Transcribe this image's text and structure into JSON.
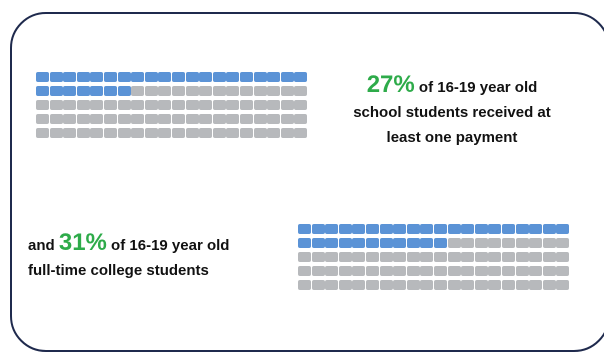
{
  "colors": {
    "filled": "#5b93d6",
    "empty": "#b7b9bc",
    "highlight": "#2eab4a",
    "border": "#1f2a4d"
  },
  "chart_data": [
    {
      "type": "waffle",
      "title": "",
      "value_percent": 27,
      "grid": {
        "rows": 5,
        "cols": 20
      },
      "filled_cells": 27,
      "caption": {
        "pct": "27%",
        "line1": " of 16-19 year old",
        "line2": "school students received at",
        "line3": "least one payment"
      }
    },
    {
      "type": "waffle",
      "title": "",
      "value_percent": 31,
      "grid": {
        "rows": 5,
        "cols": 20
      },
      "filled_cells": 31,
      "caption": {
        "prefix": "and ",
        "pct": "31%",
        "line1": " of 16-19 year old",
        "line2": "full-time college students"
      }
    }
  ]
}
